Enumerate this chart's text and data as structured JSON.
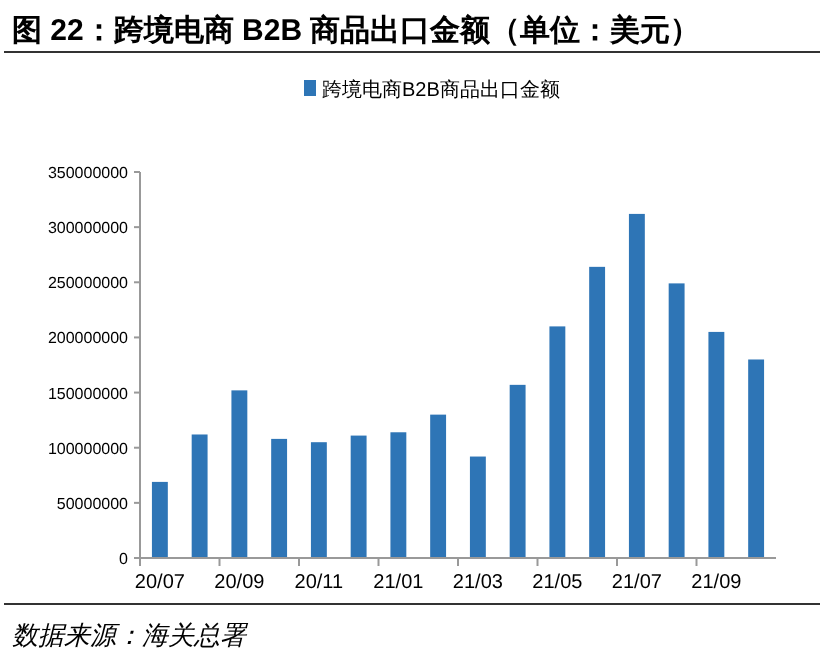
{
  "chart_data": {
    "type": "bar",
    "title": "图 22：跨境电商 B2B 商品出口金额（单位：美元）",
    "categories": [
      "20/07",
      null,
      "20/09",
      null,
      "20/11",
      null,
      "21/01",
      null,
      "21/03",
      null,
      "21/05",
      null,
      "21/07",
      null,
      "21/09",
      null
    ],
    "series": [
      {
        "name": "跨境电商B2B商品出口金额",
        "color": "#2e75b6",
        "values": [
          69000000,
          112000000,
          152000000,
          108000000,
          105000000,
          111000000,
          114000000,
          130000000,
          92000000,
          157000000,
          210000000,
          264000000,
          312000000,
          249000000,
          205000000,
          180000000
        ]
      }
    ],
    "ylim": [
      0,
      350000000
    ],
    "yticks": [
      0,
      50000000,
      100000000,
      150000000,
      200000000,
      250000000,
      300000000,
      350000000
    ],
    "legend": "top",
    "grid": false,
    "annotations": [
      "数据来源：海关总署"
    ]
  }
}
